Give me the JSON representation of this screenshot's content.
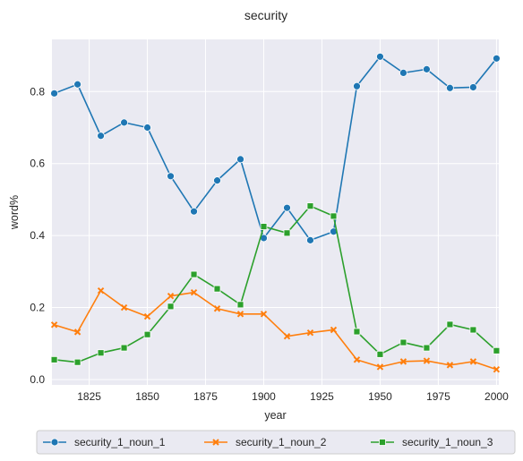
{
  "chart_data": {
    "type": "line",
    "title": "security",
    "xlabel": "year",
    "ylabel": "word%",
    "xlim": [
      1809,
      2001
    ],
    "ylim": [
      -0.015,
      0.945
    ],
    "x_ticks": [
      1825,
      1850,
      1875,
      1900,
      1925,
      1950,
      1975,
      2000
    ],
    "y_ticks": [
      0.0,
      0.2,
      0.4,
      0.6,
      0.8
    ],
    "grid": true,
    "legend_position": "bottom-center",
    "x": [
      1810,
      1820,
      1830,
      1840,
      1850,
      1860,
      1870,
      1880,
      1890,
      1900,
      1910,
      1920,
      1930,
      1940,
      1950,
      1960,
      1970,
      1980,
      1990,
      2000
    ],
    "series": [
      {
        "name": "security_1_noun_1",
        "color": "#1f77b4",
        "marker": "circle",
        "values": [
          0.795,
          0.82,
          0.677,
          0.714,
          0.7,
          0.565,
          0.467,
          0.553,
          0.612,
          0.393,
          0.477,
          0.387,
          0.411,
          0.815,
          0.897,
          0.852,
          0.862,
          0.81,
          0.812,
          0.892
        ]
      },
      {
        "name": "security_1_noun_2",
        "color": "#ff7f0e",
        "marker": "x",
        "values": [
          0.152,
          0.132,
          0.247,
          0.2,
          0.175,
          0.232,
          0.242,
          0.197,
          0.182,
          0.182,
          0.12,
          0.13,
          0.138,
          0.055,
          0.035,
          0.05,
          0.052,
          0.04,
          0.05,
          0.028
        ]
      },
      {
        "name": "security_1_noun_3",
        "color": "#2ca02c",
        "marker": "square",
        "values": [
          0.055,
          0.048,
          0.074,
          0.088,
          0.125,
          0.203,
          0.292,
          0.252,
          0.208,
          0.425,
          0.407,
          0.482,
          0.454,
          0.133,
          0.07,
          0.103,
          0.088,
          0.153,
          0.138,
          0.08
        ]
      }
    ]
  }
}
